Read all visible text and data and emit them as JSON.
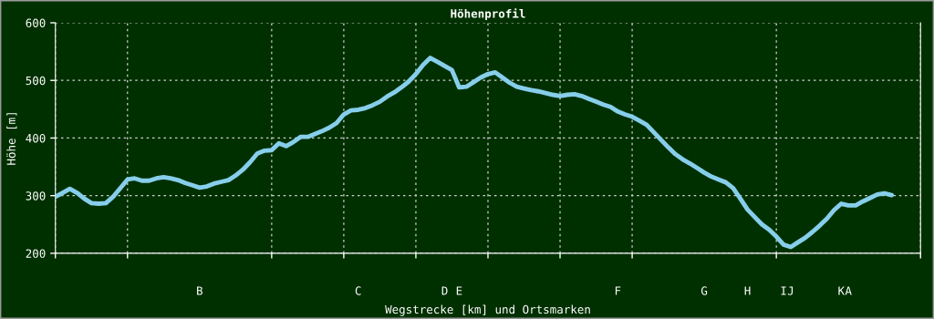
{
  "chart_data": {
    "type": "line",
    "title": "Höhenprofil",
    "xlabel": "Wegstrecke [km] und Ortsmarken",
    "ylabel": "Höhe [m]",
    "categories": [
      null,
      null,
      null,
      null,
      null,
      null,
      null,
      null,
      null,
      null,
      null,
      null,
      null,
      null,
      null,
      null,
      null,
      null,
      null,
      null,
      "B",
      null,
      null,
      null,
      null,
      null,
      null,
      null,
      null,
      null,
      null,
      null,
      null,
      null,
      null,
      null,
      null,
      null,
      null,
      null,
      null,
      null,
      "C",
      null,
      null,
      null,
      null,
      null,
      null,
      null,
      null,
      null,
      null,
      null,
      "D",
      null,
      "E",
      null,
      null,
      null,
      null,
      null,
      null,
      null,
      null,
      null,
      null,
      null,
      null,
      null,
      null,
      null,
      null,
      null,
      null,
      null,
      null,
      null,
      "F",
      null,
      null,
      null,
      null,
      null,
      null,
      null,
      null,
      null,
      null,
      null,
      "G",
      null,
      null,
      null,
      null,
      null,
      "H",
      null,
      null,
      null,
      null,
      "I",
      "J",
      null,
      null,
      null,
      null,
      null,
      null,
      "K",
      "A",
      null,
      null,
      null,
      null,
      null,
      null,
      null,
      null,
      null,
      null
    ],
    "series": [
      {
        "color": "#87ceeb",
        "values": [
          298,
          305,
          312,
          305,
          295,
          287,
          286,
          287,
          298,
          313,
          328,
          330,
          326,
          326,
          330,
          332,
          330,
          327,
          322,
          318,
          314,
          316,
          321,
          324,
          327,
          335,
          345,
          358,
          373,
          378,
          379,
          391,
          386,
          393,
          402,
          402,
          407,
          412,
          418,
          426,
          441,
          448,
          449,
          452,
          457,
          463,
          472,
          479,
          488,
          498,
          511,
          527,
          539,
          532,
          525,
          518,
          488,
          489,
          497,
          505,
          511,
          514,
          505,
          496,
          489,
          486,
          483,
          481,
          478,
          475,
          473,
          475,
          476,
          473,
          468,
          463,
          458,
          454,
          446,
          441,
          437,
          430,
          423,
          410,
          397,
          384,
          372,
          363,
          356,
          348,
          340,
          333,
          328,
          323,
          313,
          295,
          276,
          263,
          250,
          241,
          229,
          215,
          211,
          219,
          227,
          237,
          248,
          260,
          275,
          286,
          283,
          283,
          290,
          296,
          302,
          304,
          301,
          null,
          null,
          null,
          null
        ]
      }
    ],
    "ylim": [
      200,
      600
    ],
    "yticks": [
      200,
      300,
      400,
      500,
      600
    ],
    "grid": true,
    "marker": "none",
    "line_style": "solid"
  }
}
